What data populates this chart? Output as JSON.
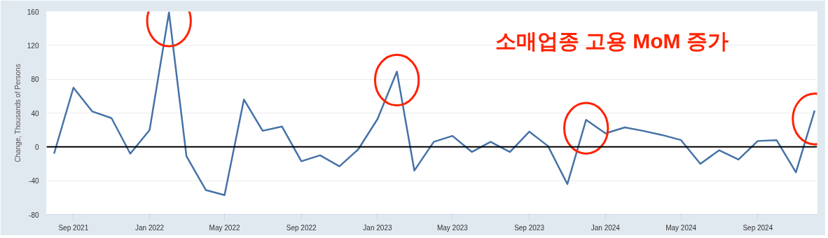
{
  "chart_data": {
    "type": "line",
    "ylabel": "Change, Thousands of Persons",
    "x": [
      "2021-08",
      "2021-09",
      "2021-10",
      "2021-11",
      "2021-12",
      "2022-01",
      "2022-02",
      "2022-03",
      "2022-04",
      "2022-05",
      "2022-06",
      "2022-07",
      "2022-08",
      "2022-09",
      "2022-10",
      "2022-11",
      "2022-12",
      "2023-01",
      "2023-02",
      "2023-03",
      "2023-04",
      "2023-05",
      "2023-06",
      "2023-07",
      "2023-08",
      "2023-09",
      "2023-10",
      "2023-11",
      "2023-12",
      "2024-01",
      "2024-02",
      "2024-03",
      "2024-04",
      "2024-05",
      "2024-06",
      "2024-07",
      "2024-08",
      "2024-09",
      "2024-10",
      "2024-11",
      "2024-12"
    ],
    "series": [
      {
        "color": "#4572a7",
        "values": [
          -8,
          70,
          42,
          34,
          -8,
          20,
          159,
          -11,
          -51,
          -57,
          56,
          19,
          24,
          -17,
          -10,
          -23,
          -3,
          33,
          89,
          -28,
          6,
          13,
          -6,
          6,
          -6,
          18,
          1,
          -44,
          32,
          16,
          23,
          19,
          14,
          8,
          -20,
          -4,
          -15,
          7,
          8,
          -30,
          43
        ]
      }
    ],
    "xlim": [
      "2021-07-20",
      "2024-12-05"
    ],
    "ylim": [
      -80,
      160
    ],
    "xticks": [
      {
        "value": "2021-09",
        "label": "Sep 2021"
      },
      {
        "value": "2022-01",
        "label": "Jan 2022"
      },
      {
        "value": "2022-05",
        "label": "May 2022"
      },
      {
        "value": "2022-09",
        "label": "Sep 2022"
      },
      {
        "value": "2023-01",
        "label": "Jan 2023"
      },
      {
        "value": "2023-05",
        "label": "May 2023"
      },
      {
        "value": "2023-09",
        "label": "Sep 2023"
      },
      {
        "value": "2024-01",
        "label": "Jan 2024"
      },
      {
        "value": "2024-05",
        "label": "May 2024"
      },
      {
        "value": "2024-09",
        "label": "Sep 2024"
      }
    ],
    "yticks": [
      -80,
      -40,
      0,
      40,
      80,
      120,
      160
    ],
    "grid": "y",
    "marker": "none",
    "line_style": "solid",
    "ref_lines": [
      {
        "axis": "y",
        "value": 0,
        "color": "#000000"
      }
    ],
    "annotations": [
      "소매업종 고용 MoM 증가"
    ]
  }
}
